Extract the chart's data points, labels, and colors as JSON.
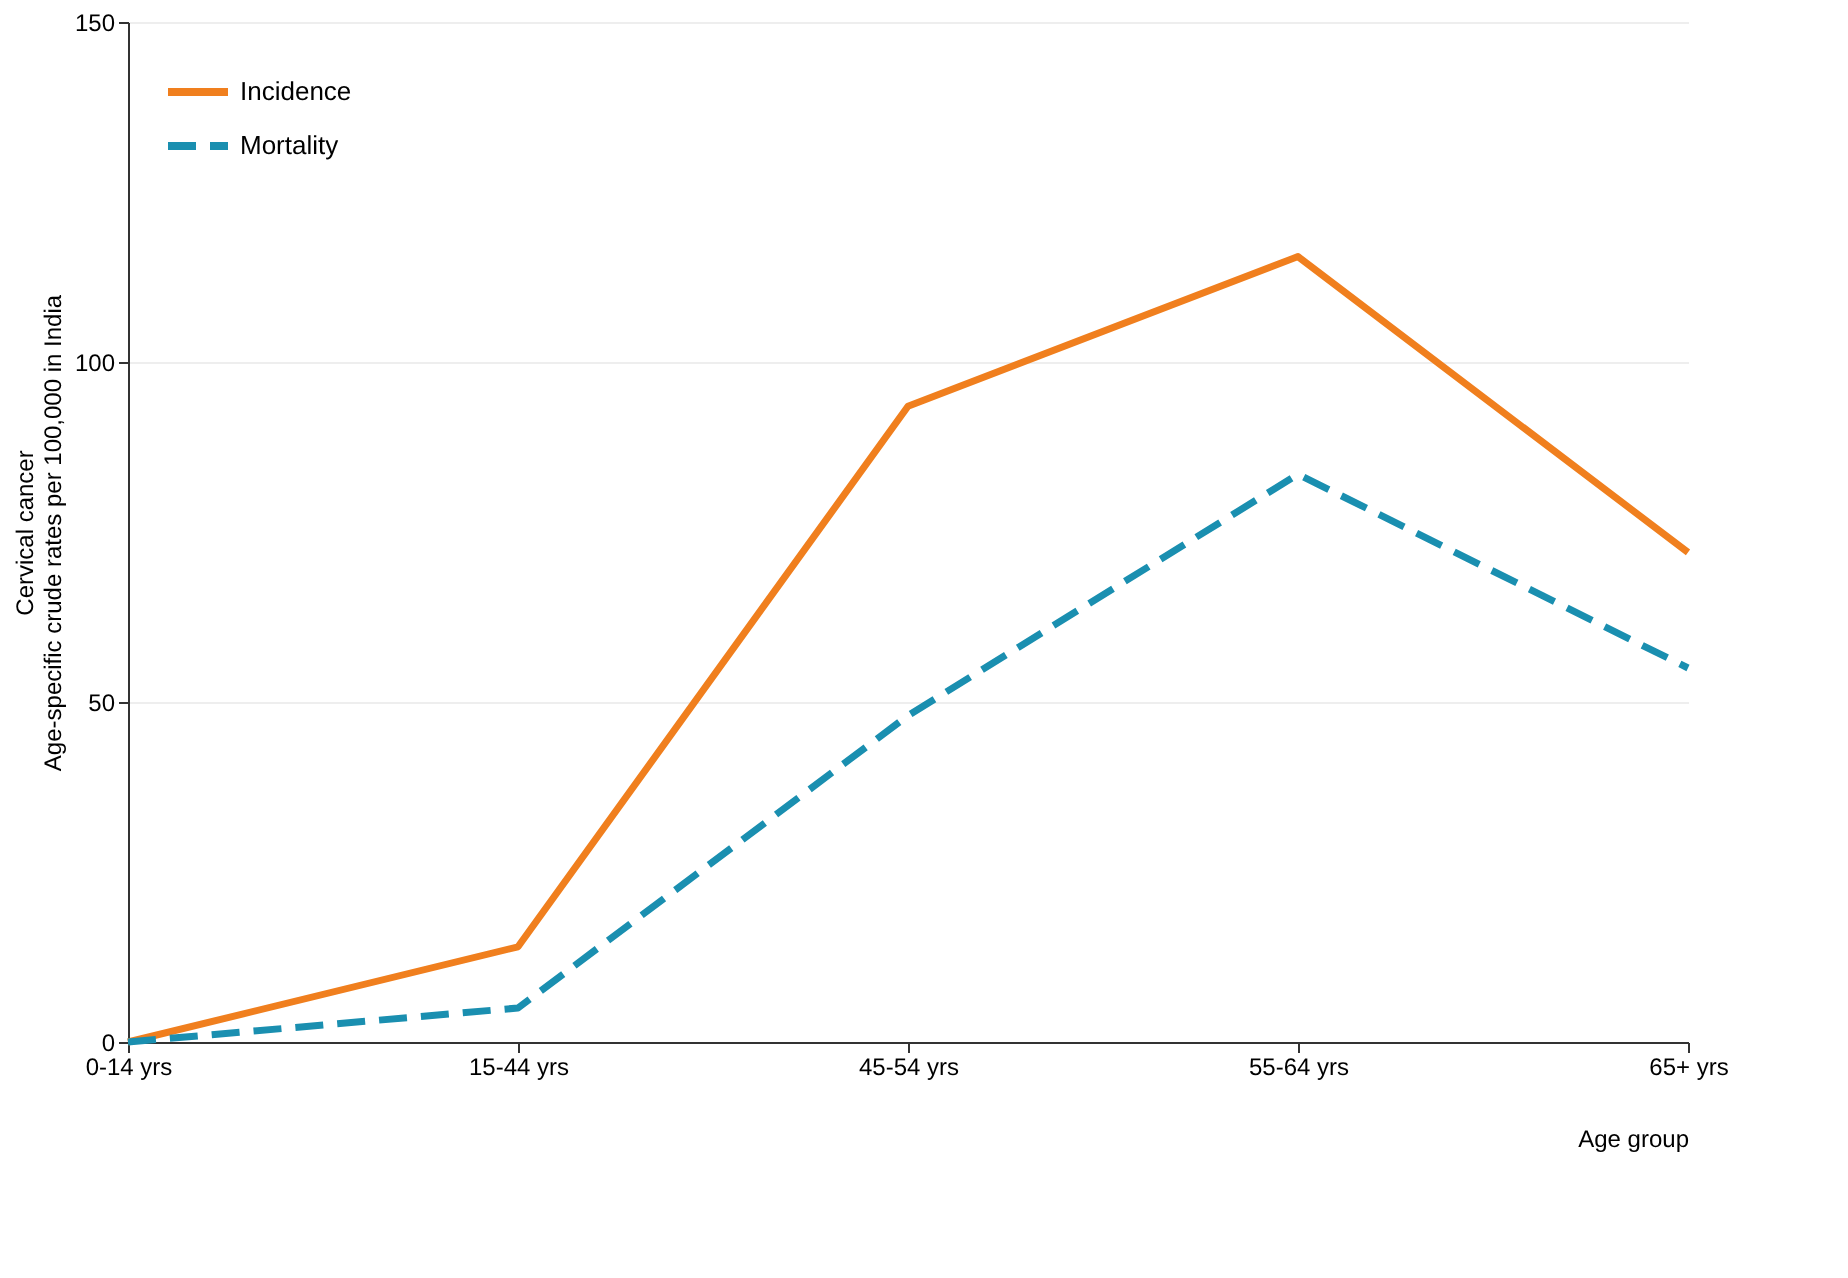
{
  "chart_data": {
    "type": "line",
    "xlabel": "Age group",
    "ylabel": "Cervical cancer\nAge-specific crude rates per 100,000 in India",
    "categories": [
      "0-14 yrs",
      "15-44 yrs",
      "45-54 yrs",
      "55-64 yrs",
      "65+ yrs"
    ],
    "series": [
      {
        "name": "Incidence",
        "color": "#f07f1e",
        "line_style": "solid",
        "values": [
          0,
          14,
          93.5,
          115.5,
          72
        ]
      },
      {
        "name": "Mortality",
        "color": "#1a8fb0",
        "line_style": "dashed",
        "values": [
          0,
          5,
          48,
          83.5,
          55
        ]
      }
    ],
    "ylim": [
      0,
      150
    ],
    "yticks": [
      0,
      50,
      100,
      150
    ],
    "grid": "y",
    "legend": "top left",
    "marker": "none"
  }
}
